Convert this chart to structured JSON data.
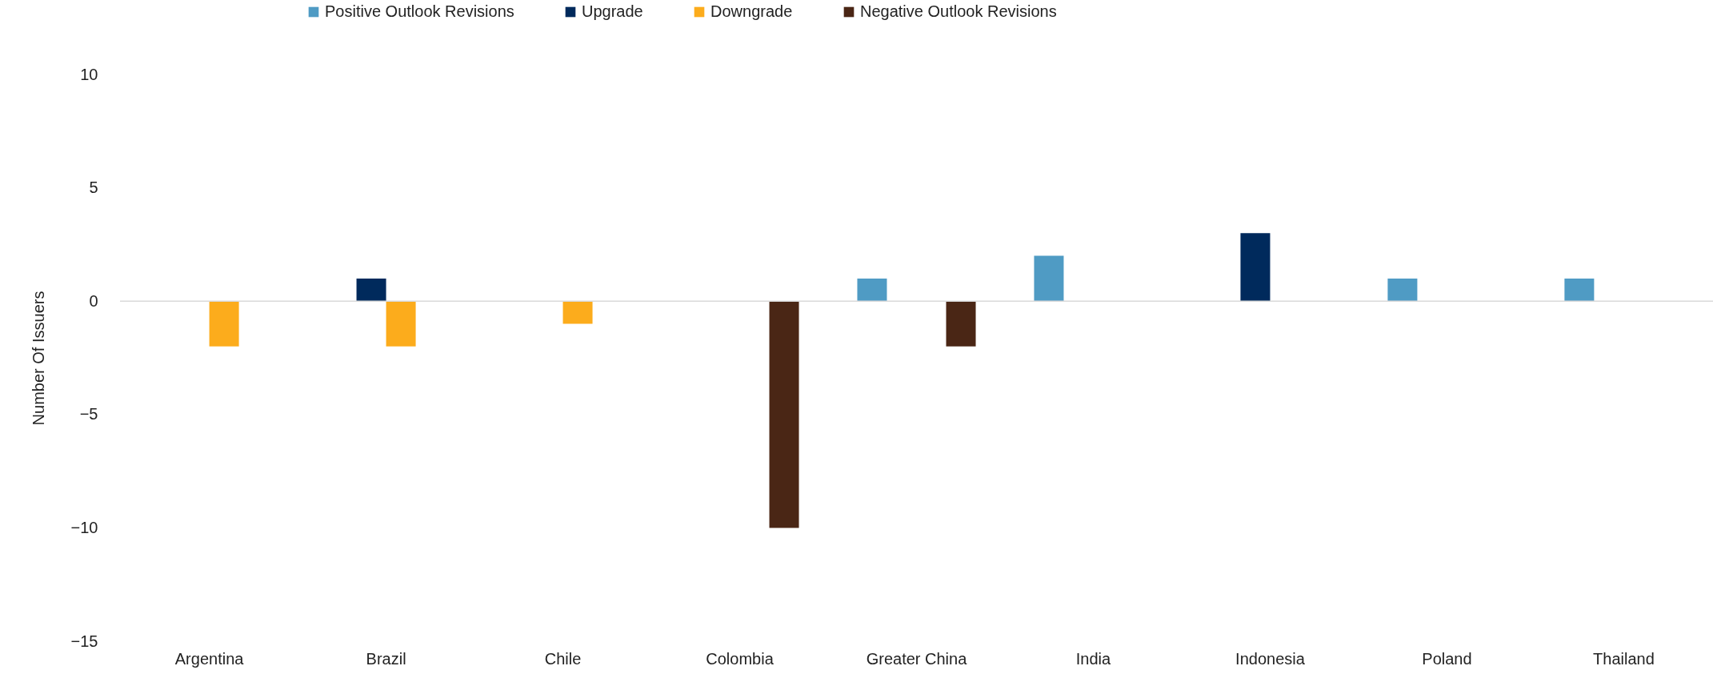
{
  "chart_data": {
    "type": "bar",
    "ylabel": "Number Of Issuers",
    "categories": [
      "Argentina",
      "Brazil",
      "Chile",
      "Colombia",
      "Greater China",
      "India",
      "Indonesia",
      "Poland",
      "Thailand"
    ],
    "series": [
      {
        "name": "Positive Outlook Revisions",
        "color": "#4f9bc4",
        "values": [
          0,
          0,
          0,
          0,
          1,
          2,
          0,
          1,
          1
        ]
      },
      {
        "name": "Upgrade",
        "color": "#002a5c",
        "values": [
          0,
          1,
          0,
          0,
          0,
          0,
          3,
          0,
          0
        ]
      },
      {
        "name": "Downgrade",
        "color": "#fcac1c",
        "values": [
          -2,
          -2,
          -1,
          0,
          0,
          0,
          0,
          0,
          0
        ]
      },
      {
        "name": "Negative Outlook Revisions",
        "color": "#4a2615",
        "values": [
          0,
          0,
          0,
          -10,
          -2,
          0,
          0,
          0,
          0
        ]
      }
    ],
    "ylim": [
      -15,
      10
    ],
    "yticks": [
      -15,
      -10,
      -5,
      0,
      5,
      10
    ],
    "ref_lines": [
      {
        "axis": "y",
        "value": 0
      }
    ],
    "grid": false,
    "legend": "top"
  }
}
